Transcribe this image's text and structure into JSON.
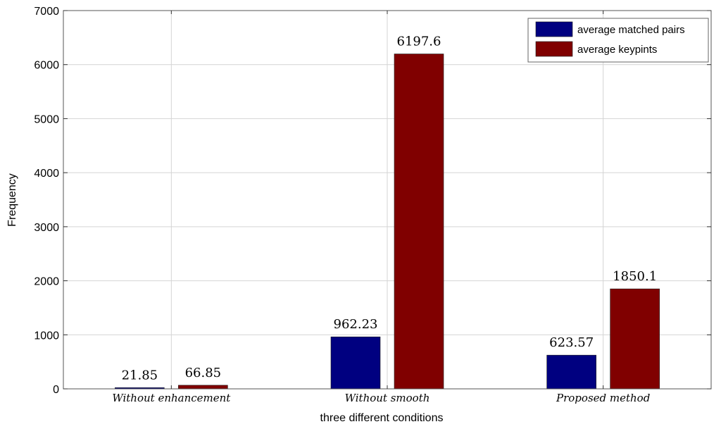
{
  "chart_data": {
    "type": "bar",
    "categories": [
      "Without enhancement",
      "Without smooth",
      "Proposed method"
    ],
    "series": [
      {
        "name": "average matched pairs",
        "values": [
          21.85,
          962.23,
          623.57
        ],
        "labels": [
          "21.85",
          "962.23",
          "623.57"
        ],
        "color": "#000080"
      },
      {
        "name": "average keypints",
        "values": [
          66.85,
          6197.6,
          1850.1
        ],
        "labels": [
          "66.85",
          "6197.6",
          "1850.1"
        ],
        "color": "#800000"
      }
    ],
    "xlabel": "three different conditions",
    "ylabel": "Frequency",
    "ylim": [
      0,
      7000
    ],
    "yticks": [
      0,
      1000,
      2000,
      3000,
      4000,
      5000,
      6000,
      7000
    ],
    "grid": true,
    "legend": "top-right"
  }
}
